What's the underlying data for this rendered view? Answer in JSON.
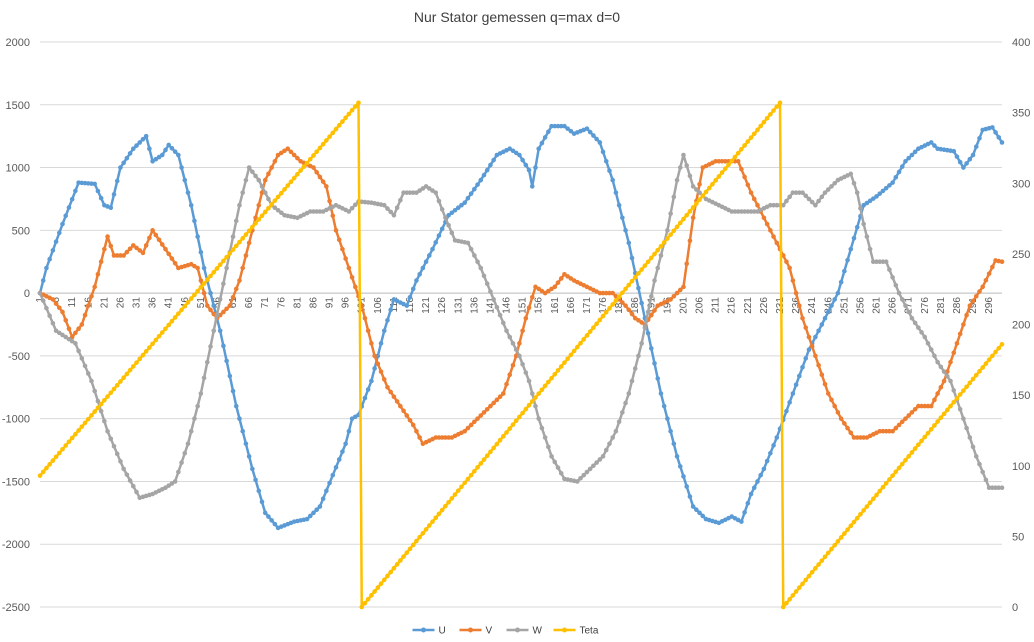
{
  "chart_data": {
    "type": "line",
    "title": "Nur Stator gemessen q=max d=0",
    "x_start": 1,
    "x_end": 300,
    "x_tick_step": 5,
    "x_tick_labels": [
      "1",
      "6",
      "11",
      "16",
      "21",
      "26",
      "31",
      "36",
      "41",
      "46",
      "51",
      "56",
      "61",
      "66",
      "71",
      "76",
      "81",
      "86",
      "91",
      "96",
      "101",
      "106",
      "111",
      "116",
      "121",
      "126",
      "131",
      "136",
      "141",
      "146",
      "151",
      "156",
      "161",
      "166",
      "171",
      "176",
      "181",
      "186",
      "191",
      "196",
      "201",
      "206",
      "211",
      "216",
      "221",
      "226",
      "231",
      "236",
      "241",
      "246",
      "251",
      "256",
      "261",
      "266",
      "271",
      "276",
      "281",
      "286",
      "291",
      "296"
    ],
    "y_left": {
      "min": -2500,
      "max": 2000,
      "ticks": [
        2000,
        1500,
        1000,
        500,
        0,
        -500,
        -1000,
        -1500,
        -2000,
        -2500
      ]
    },
    "y_right": {
      "min": 0,
      "max": 400,
      "ticks": [
        400,
        350,
        300,
        250,
        200,
        150,
        100,
        50,
        0
      ]
    },
    "grid": "horizontal",
    "legend_position": "bottom",
    "series": [
      {
        "name": "U",
        "color": "#5b9bd5",
        "axis": "left",
        "keypoints": [
          [
            1,
            0
          ],
          [
            3,
            200
          ],
          [
            8,
            550
          ],
          [
            13,
            880
          ],
          [
            18,
            870
          ],
          [
            21,
            700
          ],
          [
            23,
            680
          ],
          [
            26,
            1000
          ],
          [
            30,
            1150
          ],
          [
            34,
            1250
          ],
          [
            36,
            1050
          ],
          [
            39,
            1100
          ],
          [
            41,
            1180
          ],
          [
            44,
            1100
          ],
          [
            48,
            700
          ],
          [
            52,
            200
          ],
          [
            57,
            -300
          ],
          [
            62,
            -900
          ],
          [
            67,
            -1400
          ],
          [
            71,
            -1750
          ],
          [
            75,
            -1870
          ],
          [
            80,
            -1820
          ],
          [
            84,
            -1800
          ],
          [
            88,
            -1700
          ],
          [
            92,
            -1450
          ],
          [
            96,
            -1200
          ],
          [
            98,
            -1000
          ],
          [
            100,
            -970
          ],
          [
            104,
            -700
          ],
          [
            108,
            -300
          ],
          [
            111,
            -50
          ],
          [
            115,
            -100
          ],
          [
            118,
            100
          ],
          [
            123,
            350
          ],
          [
            128,
            620
          ],
          [
            133,
            720
          ],
          [
            138,
            900
          ],
          [
            143,
            1100
          ],
          [
            147,
            1150
          ],
          [
            150,
            1100
          ],
          [
            153,
            980
          ],
          [
            154,
            850
          ],
          [
            156,
            1150
          ],
          [
            160,
            1330
          ],
          [
            164,
            1330
          ],
          [
            167,
            1270
          ],
          [
            171,
            1310
          ],
          [
            175,
            1200
          ],
          [
            179,
            900
          ],
          [
            184,
            400
          ],
          [
            189,
            -200
          ],
          [
            194,
            -800
          ],
          [
            199,
            -1300
          ],
          [
            204,
            -1700
          ],
          [
            208,
            -1800
          ],
          [
            212,
            -1830
          ],
          [
            216,
            -1780
          ],
          [
            219,
            -1820
          ],
          [
            222,
            -1600
          ],
          [
            226,
            -1400
          ],
          [
            230,
            -1150
          ],
          [
            235,
            -800
          ],
          [
            240,
            -450
          ],
          [
            245,
            -200
          ],
          [
            249,
            0
          ],
          [
            253,
            350
          ],
          [
            257,
            700
          ],
          [
            261,
            770
          ],
          [
            266,
            880
          ],
          [
            270,
            1050
          ],
          [
            274,
            1150
          ],
          [
            278,
            1200
          ],
          [
            280,
            1150
          ],
          [
            285,
            1130
          ],
          [
            288,
            1000
          ],
          [
            291,
            1100
          ],
          [
            294,
            1300
          ],
          [
            297,
            1320
          ],
          [
            300,
            1200
          ]
        ]
      },
      {
        "name": "V",
        "color": "#ed7d31",
        "axis": "left",
        "keypoints": [
          [
            1,
            0
          ],
          [
            5,
            -50
          ],
          [
            8,
            -150
          ],
          [
            11,
            -350
          ],
          [
            14,
            -250
          ],
          [
            18,
            50
          ],
          [
            22,
            450
          ],
          [
            24,
            300
          ],
          [
            27,
            300
          ],
          [
            30,
            380
          ],
          [
            33,
            320
          ],
          [
            36,
            500
          ],
          [
            40,
            350
          ],
          [
            44,
            200
          ],
          [
            48,
            230
          ],
          [
            50,
            200
          ],
          [
            53,
            -100
          ],
          [
            56,
            -200
          ],
          [
            60,
            -100
          ],
          [
            63,
            100
          ],
          [
            67,
            500
          ],
          [
            71,
            900
          ],
          [
            75,
            1100
          ],
          [
            78,
            1150
          ],
          [
            82,
            1050
          ],
          [
            86,
            1000
          ],
          [
            90,
            850
          ],
          [
            93,
            500
          ],
          [
            97,
            200
          ],
          [
            101,
            -100
          ],
          [
            105,
            -500
          ],
          [
            109,
            -750
          ],
          [
            113,
            -900
          ],
          [
            117,
            -1050
          ],
          [
            120,
            -1200
          ],
          [
            124,
            -1150
          ],
          [
            129,
            -1150
          ],
          [
            133,
            -1100
          ],
          [
            137,
            -1000
          ],
          [
            141,
            -900
          ],
          [
            145,
            -800
          ],
          [
            149,
            -500
          ],
          [
            152,
            -200
          ],
          [
            155,
            50
          ],
          [
            158,
            0
          ],
          [
            161,
            50
          ],
          [
            164,
            150
          ],
          [
            167,
            100
          ],
          [
            171,
            50
          ],
          [
            175,
            0
          ],
          [
            179,
            0
          ],
          [
            183,
            -100
          ],
          [
            186,
            -200
          ],
          [
            189,
            -250
          ],
          [
            193,
            -100
          ],
          [
            197,
            -50
          ],
          [
            201,
            50
          ],
          [
            204,
            600
          ],
          [
            207,
            1000
          ],
          [
            211,
            1050
          ],
          [
            215,
            1050
          ],
          [
            218,
            1050
          ],
          [
            222,
            800
          ],
          [
            226,
            600
          ],
          [
            230,
            400
          ],
          [
            234,
            200
          ],
          [
            238,
            -200
          ],
          [
            242,
            -500
          ],
          [
            246,
            -800
          ],
          [
            250,
            -1000
          ],
          [
            254,
            -1150
          ],
          [
            258,
            -1150
          ],
          [
            262,
            -1100
          ],
          [
            266,
            -1100
          ],
          [
            270,
            -1000
          ],
          [
            274,
            -900
          ],
          [
            278,
            -900
          ],
          [
            282,
            -700
          ],
          [
            286,
            -400
          ],
          [
            290,
            -100
          ],
          [
            294,
            50
          ],
          [
            298,
            260
          ],
          [
            300,
            250
          ]
        ]
      },
      {
        "name": "W",
        "color": "#a5a5a5",
        "axis": "left",
        "keypoints": [
          [
            1,
            0
          ],
          [
            6,
            -300
          ],
          [
            12,
            -400
          ],
          [
            17,
            -700
          ],
          [
            22,
            -1100
          ],
          [
            27,
            -1400
          ],
          [
            32,
            -1630
          ],
          [
            36,
            -1600
          ],
          [
            40,
            -1550
          ],
          [
            43,
            -1500
          ],
          [
            47,
            -1200
          ],
          [
            51,
            -800
          ],
          [
            55,
            -300
          ],
          [
            59,
            200
          ],
          [
            63,
            700
          ],
          [
            66,
            1000
          ],
          [
            69,
            900
          ],
          [
            73,
            700
          ],
          [
            77,
            620
          ],
          [
            81,
            600
          ],
          [
            85,
            650
          ],
          [
            89,
            650
          ],
          [
            93,
            700
          ],
          [
            97,
            650
          ],
          [
            100,
            730
          ],
          [
            104,
            720
          ],
          [
            108,
            700
          ],
          [
            111,
            620
          ],
          [
            114,
            800
          ],
          [
            118,
            800
          ],
          [
            121,
            850
          ],
          [
            124,
            800
          ],
          [
            127,
            600
          ],
          [
            130,
            420
          ],
          [
            134,
            400
          ],
          [
            138,
            200
          ],
          [
            142,
            -50
          ],
          [
            146,
            -300
          ],
          [
            150,
            -500
          ],
          [
            153,
            -700
          ],
          [
            156,
            -1000
          ],
          [
            160,
            -1300
          ],
          [
            164,
            -1480
          ],
          [
            168,
            -1500
          ],
          [
            172,
            -1400
          ],
          [
            176,
            -1300
          ],
          [
            180,
            -1100
          ],
          [
            184,
            -800
          ],
          [
            188,
            -400
          ],
          [
            192,
            100
          ],
          [
            196,
            500
          ],
          [
            199,
            900
          ],
          [
            201,
            1100
          ],
          [
            204,
            850
          ],
          [
            208,
            750
          ],
          [
            212,
            700
          ],
          [
            216,
            650
          ],
          [
            220,
            650
          ],
          [
            224,
            650
          ],
          [
            228,
            700
          ],
          [
            232,
            700
          ],
          [
            235,
            800
          ],
          [
            238,
            800
          ],
          [
            242,
            700
          ],
          [
            245,
            800
          ],
          [
            249,
            900
          ],
          [
            253,
            950
          ],
          [
            255,
            800
          ],
          [
            257,
            550
          ],
          [
            260,
            250
          ],
          [
            264,
            250
          ],
          [
            268,
            0
          ],
          [
            272,
            -200
          ],
          [
            276,
            -350
          ],
          [
            280,
            -550
          ],
          [
            284,
            -700
          ],
          [
            288,
            -1000
          ],
          [
            292,
            -1300
          ],
          [
            296,
            -1550
          ],
          [
            300,
            -1550
          ]
        ]
      },
      {
        "name": "Teta",
        "color": "#ffc000",
        "axis": "right",
        "keypoints": [
          [
            1,
            93
          ],
          [
            100,
            357
          ],
          [
            101,
            0
          ],
          [
            231,
            357
          ],
          [
            232,
            0
          ],
          [
            300,
            186
          ]
        ]
      }
    ]
  }
}
